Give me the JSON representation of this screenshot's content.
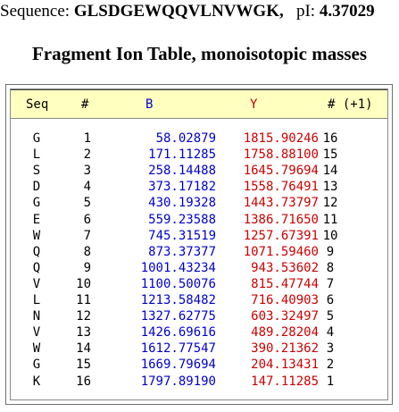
{
  "sequence_line": {
    "sequence_label": "Sequence:",
    "sequence_value": "GLSDGEWQQVLNVWGK,",
    "pi_label": "pI:",
    "pi_value": "4.37029"
  },
  "title": "Fragment Ion Table, monoisotopic masses",
  "table": {
    "headers": {
      "seq": "Seq",
      "num": "#",
      "b": "B",
      "y": "Y",
      "rev": "# (+1)"
    },
    "rows": [
      {
        "seq": "G",
        "num": "1",
        "b": "58.02879",
        "y": "1815.90246",
        "rev": "16"
      },
      {
        "seq": "L",
        "num": "2",
        "b": "171.11285",
        "y": "1758.88100",
        "rev": "15"
      },
      {
        "seq": "S",
        "num": "3",
        "b": "258.14488",
        "y": "1645.79694",
        "rev": "14"
      },
      {
        "seq": "D",
        "num": "4",
        "b": "373.17182",
        "y": "1558.76491",
        "rev": "13"
      },
      {
        "seq": "G",
        "num": "5",
        "b": "430.19328",
        "y": "1443.73797",
        "rev": "12"
      },
      {
        "seq": "E",
        "num": "6",
        "b": "559.23588",
        "y": "1386.71650",
        "rev": "11"
      },
      {
        "seq": "W",
        "num": "7",
        "b": "745.31519",
        "y": "1257.67391",
        "rev": "10"
      },
      {
        "seq": "Q",
        "num": "8",
        "b": "873.37377",
        "y": "1071.59460",
        "rev": "9"
      },
      {
        "seq": "Q",
        "num": "9",
        "b": "1001.43234",
        "y": "943.53602",
        "rev": "8"
      },
      {
        "seq": "V",
        "num": "10",
        "b": "1100.50076",
        "y": "815.47744",
        "rev": "7"
      },
      {
        "seq": "L",
        "num": "11",
        "b": "1213.58482",
        "y": "716.40903",
        "rev": "6"
      },
      {
        "seq": "N",
        "num": "12",
        "b": "1327.62775",
        "y": "603.32497",
        "rev": "5"
      },
      {
        "seq": "V",
        "num": "13",
        "b": "1426.69616",
        "y": "489.28204",
        "rev": "4"
      },
      {
        "seq": "W",
        "num": "14",
        "b": "1612.77547",
        "y": "390.21362",
        "rev": "3"
      },
      {
        "seq": "G",
        "num": "15",
        "b": "1669.79694",
        "y": "204.13431",
        "rev": "2"
      },
      {
        "seq": "K",
        "num": "16",
        "b": "1797.89190",
        "y": "147.11285",
        "rev": "1"
      }
    ]
  },
  "colors": {
    "b_ion": "#0000cc",
    "y_ion": "#cc0000",
    "header_bg": "#ffffc0"
  }
}
